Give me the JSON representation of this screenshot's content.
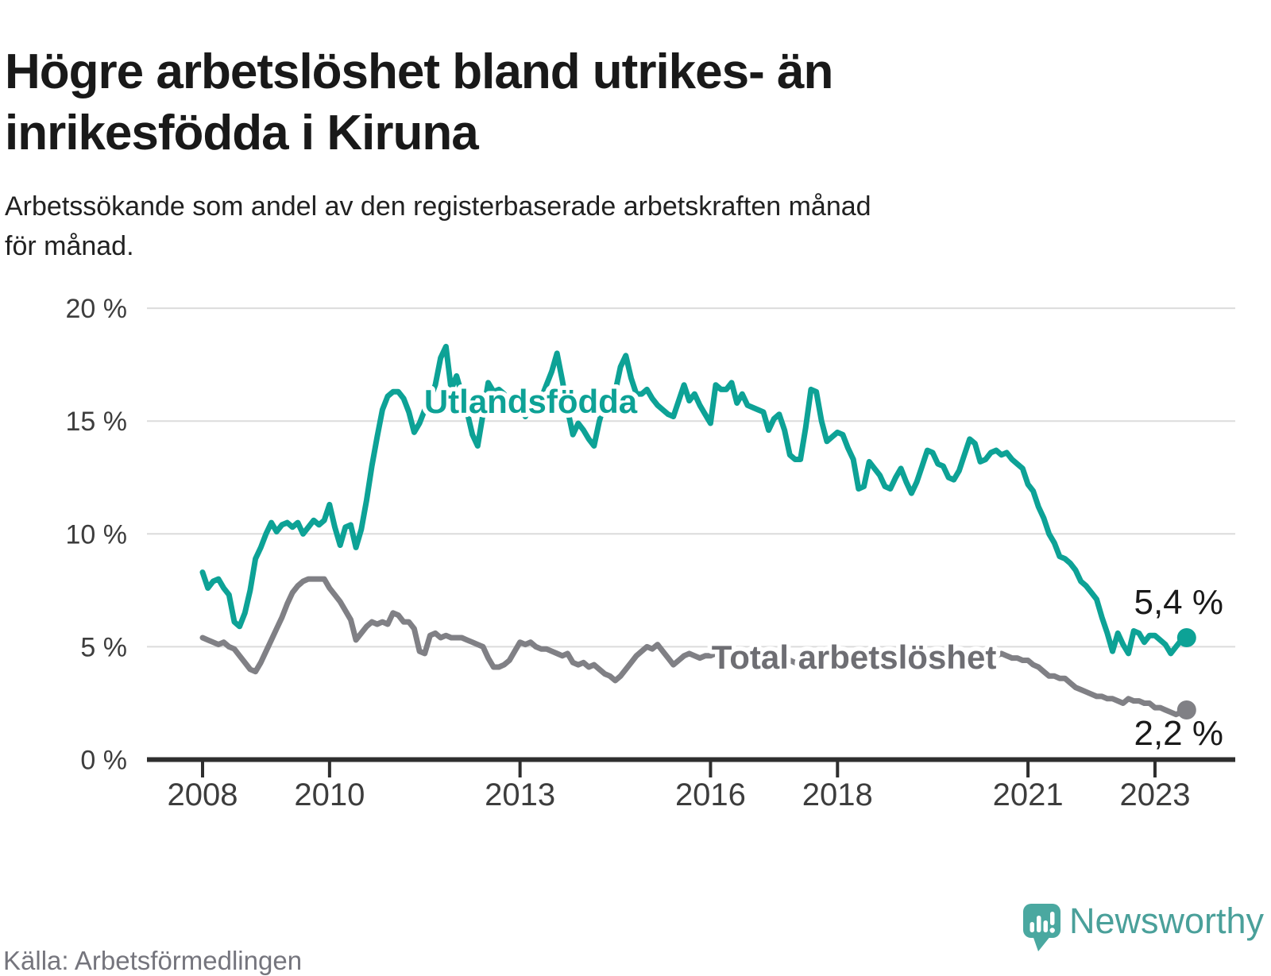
{
  "header": {
    "title": "Högre arbetslöshet bland utrikes- än\ninrikesfödda i Kiruna",
    "subtitle": "Arbetssökande som andel av den registerbaserade arbetskraften månad\nför månad."
  },
  "footer": {
    "source": "Källa: Arbetsförmedlingen",
    "brand": "Newsworthy",
    "brand_color": "#4aa09a"
  },
  "chart_data": {
    "type": "line",
    "x_unit": "month",
    "x_start": "2008-01",
    "x_end": "2023-07",
    "ylim": [
      0,
      20
    ],
    "grid": true,
    "y_ticks": [
      {
        "value": 0,
        "label": "0 %"
      },
      {
        "value": 5,
        "label": "5 %"
      },
      {
        "value": 10,
        "label": "10 %"
      },
      {
        "value": 15,
        "label": "15 %"
      },
      {
        "value": 20,
        "label": "20 %"
      }
    ],
    "x_ticks": [
      2008,
      2010,
      2013,
      2016,
      2018,
      2021,
      2023
    ],
    "series": [
      {
        "name": "Utlandsfödda",
        "color": "#0da296",
        "label_color": "#0da296",
        "end_label": "5,4 %",
        "end_value": 5.4,
        "values": [
          8.3,
          7.6,
          7.9,
          8.0,
          7.6,
          7.3,
          6.1,
          5.9,
          6.5,
          7.5,
          8.9,
          9.4,
          10.0,
          10.5,
          10.1,
          10.4,
          10.5,
          10.3,
          10.5,
          10.0,
          10.3,
          10.6,
          10.4,
          10.6,
          11.3,
          10.3,
          9.5,
          10.3,
          10.4,
          9.4,
          10.2,
          11.5,
          13.0,
          14.3,
          15.5,
          16.1,
          16.3,
          16.3,
          16.0,
          15.4,
          14.5,
          14.9,
          15.5,
          16.0,
          16.6,
          17.8,
          18.3,
          16.4,
          17.0,
          16.2,
          15.4,
          14.4,
          13.9,
          15.3,
          16.7,
          16.3,
          16.4,
          16.2,
          15.4,
          15.8,
          15.6,
          15.2,
          15.9,
          15.5,
          16.0,
          16.6,
          17.2,
          18.0,
          16.8,
          15.5,
          14.4,
          14.9,
          14.6,
          14.2,
          13.9,
          15.0,
          15.8,
          15.4,
          16.3,
          17.4,
          17.9,
          16.9,
          16.2,
          16.2,
          16.4,
          16.0,
          15.7,
          15.5,
          15.3,
          15.2,
          15.9,
          16.6,
          15.9,
          16.2,
          15.7,
          15.3,
          14.9,
          16.6,
          16.4,
          16.4,
          16.7,
          15.8,
          16.2,
          15.7,
          15.6,
          15.5,
          15.4,
          14.6,
          15.1,
          15.3,
          14.6,
          13.5,
          13.3,
          13.3,
          14.7,
          16.4,
          16.3,
          15.0,
          14.1,
          14.3,
          14.5,
          14.4,
          13.8,
          13.3,
          12.0,
          12.1,
          13.2,
          12.9,
          12.6,
          12.1,
          12.0,
          12.5,
          12.9,
          12.3,
          11.8,
          12.3,
          13.0,
          13.7,
          13.6,
          13.1,
          13.0,
          12.5,
          12.4,
          12.8,
          13.5,
          14.2,
          14.0,
          13.2,
          13.3,
          13.6,
          13.7,
          13.5,
          13.6,
          13.3,
          13.1,
          12.9,
          12.2,
          11.9,
          11.2,
          10.7,
          10.0,
          9.6,
          9.0,
          8.9,
          8.7,
          8.4,
          7.9,
          7.7,
          7.4,
          7.1,
          6.3,
          5.6,
          4.8,
          5.6,
          5.1,
          4.7,
          5.7,
          5.6,
          5.2,
          5.5,
          5.5,
          5.3,
          5.1,
          4.7,
          5.0,
          5.3,
          5.4
        ]
      },
      {
        "name": "Total arbetslöshet",
        "color": "#808085",
        "label_color": "#6e6e73",
        "end_label": "2,2 %",
        "end_value": 2.2,
        "values": [
          5.4,
          5.3,
          5.2,
          5.1,
          5.2,
          5.0,
          4.9,
          4.6,
          4.3,
          4.0,
          3.9,
          4.3,
          4.8,
          5.3,
          5.8,
          6.3,
          6.9,
          7.4,
          7.7,
          7.9,
          8.0,
          8.0,
          8.0,
          8.0,
          7.6,
          7.3,
          7.0,
          6.6,
          6.2,
          5.3,
          5.6,
          5.9,
          6.1,
          6.0,
          6.1,
          6.0,
          6.5,
          6.4,
          6.1,
          6.1,
          5.8,
          4.8,
          4.7,
          5.5,
          5.6,
          5.4,
          5.5,
          5.4,
          5.4,
          5.4,
          5.3,
          5.2,
          5.1,
          5.0,
          4.5,
          4.1,
          4.1,
          4.2,
          4.4,
          4.8,
          5.2,
          5.1,
          5.2,
          5.0,
          4.9,
          4.9,
          4.8,
          4.7,
          4.6,
          4.7,
          4.3,
          4.2,
          4.3,
          4.1,
          4.2,
          4.0,
          3.8,
          3.7,
          3.5,
          3.7,
          4.0,
          4.3,
          4.6,
          4.8,
          5.0,
          4.9,
          5.1,
          4.8,
          4.5,
          4.2,
          4.4,
          4.6,
          4.7,
          4.6,
          4.5,
          4.6,
          4.6,
          4.7,
          4.6,
          4.5,
          4.6,
          4.5,
          4.4,
          4.5,
          4.4,
          4.5,
          4.6,
          4.7,
          4.7,
          4.6,
          4.5,
          4.4,
          4.3,
          4.3,
          4.3,
          4.4,
          4.5,
          4.5,
          4.6,
          4.6,
          4.5,
          4.4,
          4.4,
          4.5,
          4.4,
          4.3,
          4.2,
          4.3,
          4.4,
          4.3,
          4.3,
          4.4,
          4.5,
          4.5,
          4.4,
          4.3,
          4.3,
          4.3,
          4.4,
          4.5,
          4.5,
          4.4,
          4.4,
          4.5,
          4.6,
          4.6,
          4.5,
          4.7,
          4.6,
          4.5,
          4.6,
          4.7,
          4.6,
          4.5,
          4.5,
          4.4,
          4.4,
          4.2,
          4.1,
          3.9,
          3.7,
          3.7,
          3.6,
          3.6,
          3.4,
          3.2,
          3.1,
          3.0,
          2.9,
          2.8,
          2.8,
          2.7,
          2.7,
          2.6,
          2.5,
          2.7,
          2.6,
          2.6,
          2.5,
          2.5,
          2.3,
          2.3,
          2.2,
          2.1,
          2.0,
          2.1,
          2.2
        ]
      }
    ]
  }
}
